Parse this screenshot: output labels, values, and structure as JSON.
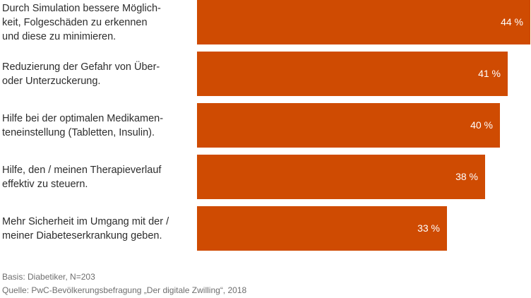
{
  "chart_data": {
    "type": "bar",
    "orientation": "horizontal",
    "categories": [
      "Durch Simulation bessere Möglich-\nkeit, Folgeschäden zu erkennen\nund diese zu minimieren.",
      "Reduzierung der Gefahr von Über-\noder Unterzuckerung.",
      "Hilfe bei der optimalen Medikamen-\nteneinstellung (Tabletten, Insulin).",
      "Hilfe, den / meinen Therapieverlauf\neffektiv zu steuern.",
      "Mehr Sicherheit im Umgang mit der /\nmeiner Diabeteserkrankung geben."
    ],
    "values": [
      44,
      41,
      40,
      38,
      33
    ],
    "value_labels": [
      "44 %",
      "41 %",
      "40 %",
      "38 %",
      "33 %"
    ],
    "unit": "%",
    "xlim": [
      0,
      44
    ],
    "grid": false,
    "bar_color": "#cf4b02",
    "value_label_color": "#ffffff"
  },
  "footer": {
    "basis": "Basis: Diabetiker, N=203",
    "source": "Quelle: PwC-Bevölkerungsbefragung „Der digitale Zwilling“, 2018"
  }
}
